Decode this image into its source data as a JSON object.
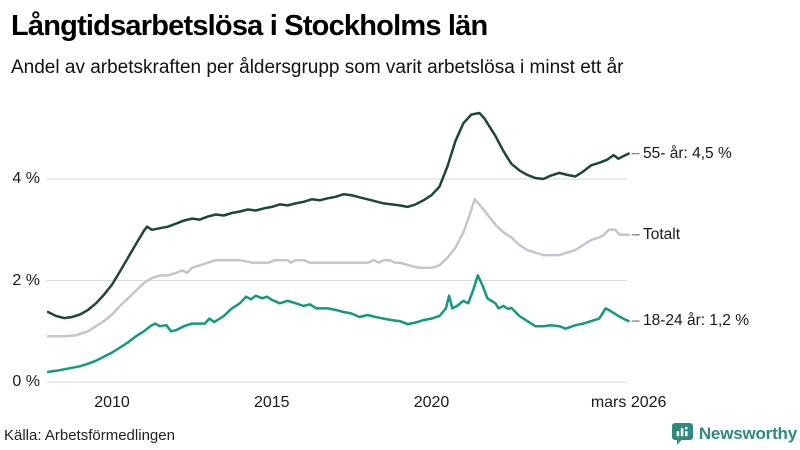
{
  "header": {
    "title": "Långtidsarbetslösa i Stockholms län",
    "subtitle": "Andel av arbetskraften per åldersgrupp som varit arbetslösa i minst ett år"
  },
  "footer": {
    "source": "Källa: Arbetsförmedlingen",
    "brand": "Newsworthy",
    "brand_color": "#2e8a7c",
    "brand_icon": "newsworthy-chart-bubble-icon"
  },
  "chart_data": {
    "type": "line",
    "title": "Långtidsarbetslösa i Stockholms län",
    "subtitle": "Andel av arbetskraften per åldersgrupp som varit arbetslösa i minst ett år",
    "grid": true,
    "grid_color": "#d9d9de",
    "legend_position": "right-end-labels",
    "x_axis": {
      "range": [
        2008,
        2026.25
      ],
      "ticks": [
        "2010",
        "2015",
        "2020",
        "mars 2026"
      ],
      "tick_positions": [
        2010,
        2015,
        2020,
        2026.17
      ]
    },
    "y_axis": {
      "unit": "%",
      "range": [
        0,
        5.6
      ],
      "ticks": [
        "4 %",
        "2 %",
        "0 %"
      ],
      "tick_values": [
        4,
        2,
        0
      ]
    },
    "series": [
      {
        "name": "55- år",
        "label": "55- år: 4,5 %",
        "end_value": "4,5 %",
        "color": "#1d463a",
        "points": [
          [
            2008,
            1.38
          ],
          [
            2008.25,
            1.3
          ],
          [
            2008.5,
            1.26
          ],
          [
            2008.75,
            1.28
          ],
          [
            2009,
            1.33
          ],
          [
            2009.25,
            1.42
          ],
          [
            2009.5,
            1.55
          ],
          [
            2009.75,
            1.72
          ],
          [
            2010,
            1.92
          ],
          [
            2010.25,
            2.18
          ],
          [
            2010.5,
            2.45
          ],
          [
            2010.75,
            2.72
          ],
          [
            2011,
            2.98
          ],
          [
            2011.1,
            3.06
          ],
          [
            2011.25,
            3.0
          ],
          [
            2011.5,
            3.03
          ],
          [
            2011.75,
            3.06
          ],
          [
            2012,
            3.12
          ],
          [
            2012.25,
            3.18
          ],
          [
            2012.5,
            3.22
          ],
          [
            2012.75,
            3.2
          ],
          [
            2013,
            3.26
          ],
          [
            2013.25,
            3.3
          ],
          [
            2013.5,
            3.28
          ],
          [
            2013.75,
            3.33
          ],
          [
            2014,
            3.36
          ],
          [
            2014.25,
            3.4
          ],
          [
            2014.5,
            3.38
          ],
          [
            2014.75,
            3.42
          ],
          [
            2015,
            3.45
          ],
          [
            2015.25,
            3.5
          ],
          [
            2015.5,
            3.48
          ],
          [
            2015.75,
            3.52
          ],
          [
            2016,
            3.55
          ],
          [
            2016.25,
            3.6
          ],
          [
            2016.5,
            3.58
          ],
          [
            2016.75,
            3.62
          ],
          [
            2017,
            3.65
          ],
          [
            2017.25,
            3.7
          ],
          [
            2017.5,
            3.68
          ],
          [
            2017.75,
            3.64
          ],
          [
            2018,
            3.6
          ],
          [
            2018.25,
            3.56
          ],
          [
            2018.5,
            3.52
          ],
          [
            2018.75,
            3.5
          ],
          [
            2019,
            3.48
          ],
          [
            2019.25,
            3.45
          ],
          [
            2019.5,
            3.5
          ],
          [
            2019.75,
            3.58
          ],
          [
            2020,
            3.68
          ],
          [
            2020.25,
            3.85
          ],
          [
            2020.5,
            4.25
          ],
          [
            2020.75,
            4.75
          ],
          [
            2021,
            5.1
          ],
          [
            2021.25,
            5.27
          ],
          [
            2021.5,
            5.3
          ],
          [
            2021.65,
            5.2
          ],
          [
            2021.75,
            5.1
          ],
          [
            2022,
            4.85
          ],
          [
            2022.25,
            4.55
          ],
          [
            2022.5,
            4.3
          ],
          [
            2022.75,
            4.17
          ],
          [
            2023,
            4.08
          ],
          [
            2023.25,
            4.02
          ],
          [
            2023.5,
            4.0
          ],
          [
            2023.75,
            4.07
          ],
          [
            2024,
            4.12
          ],
          [
            2024.25,
            4.08
          ],
          [
            2024.5,
            4.05
          ],
          [
            2024.75,
            4.15
          ],
          [
            2025,
            4.27
          ],
          [
            2025.25,
            4.32
          ],
          [
            2025.5,
            4.38
          ],
          [
            2025.7,
            4.47
          ],
          [
            2025.85,
            4.4
          ],
          [
            2026,
            4.45
          ],
          [
            2026.17,
            4.5
          ]
        ]
      },
      {
        "name": "Totalt",
        "label": "Totalt",
        "end_value": "",
        "color": "#c6c3d2",
        "points": [
          [
            2008,
            0.9
          ],
          [
            2008.5,
            0.9
          ],
          [
            2008.9,
            0.92
          ],
          [
            2009,
            0.95
          ],
          [
            2009.25,
            1.0
          ],
          [
            2009.5,
            1.1
          ],
          [
            2009.75,
            1.2
          ],
          [
            2010,
            1.33
          ],
          [
            2010.25,
            1.5
          ],
          [
            2010.5,
            1.65
          ],
          [
            2010.75,
            1.8
          ],
          [
            2011,
            1.95
          ],
          [
            2011.25,
            2.05
          ],
          [
            2011.5,
            2.1
          ],
          [
            2011.75,
            2.1
          ],
          [
            2012,
            2.15
          ],
          [
            2012.2,
            2.2
          ],
          [
            2012.35,
            2.15
          ],
          [
            2012.5,
            2.25
          ],
          [
            2012.75,
            2.3
          ],
          [
            2013,
            2.35
          ],
          [
            2013.25,
            2.4
          ],
          [
            2013.75,
            2.4
          ],
          [
            2014,
            2.4
          ],
          [
            2014.4,
            2.35
          ],
          [
            2014.9,
            2.35
          ],
          [
            2015.1,
            2.4
          ],
          [
            2015.5,
            2.4
          ],
          [
            2015.6,
            2.35
          ],
          [
            2015.75,
            2.4
          ],
          [
            2016,
            2.4
          ],
          [
            2016.2,
            2.35
          ],
          [
            2017,
            2.35
          ],
          [
            2018,
            2.35
          ],
          [
            2018.2,
            2.4
          ],
          [
            2018.35,
            2.35
          ],
          [
            2018.5,
            2.4
          ],
          [
            2018.7,
            2.4
          ],
          [
            2018.85,
            2.35
          ],
          [
            2019,
            2.35
          ],
          [
            2019.3,
            2.3
          ],
          [
            2019.6,
            2.25
          ],
          [
            2020,
            2.25
          ],
          [
            2020.25,
            2.3
          ],
          [
            2020.5,
            2.45
          ],
          [
            2020.75,
            2.65
          ],
          [
            2021,
            2.95
          ],
          [
            2021.2,
            3.3
          ],
          [
            2021.35,
            3.6
          ],
          [
            2021.5,
            3.5
          ],
          [
            2021.75,
            3.3
          ],
          [
            2022,
            3.1
          ],
          [
            2022.25,
            2.95
          ],
          [
            2022.5,
            2.85
          ],
          [
            2022.75,
            2.7
          ],
          [
            2023,
            2.6
          ],
          [
            2023.25,
            2.55
          ],
          [
            2023.5,
            2.5
          ],
          [
            2024,
            2.5
          ],
          [
            2024.25,
            2.55
          ],
          [
            2024.5,
            2.6
          ],
          [
            2024.75,
            2.7
          ],
          [
            2025,
            2.8
          ],
          [
            2025.25,
            2.85
          ],
          [
            2025.4,
            2.9
          ],
          [
            2025.55,
            3.0
          ],
          [
            2025.75,
            3.0
          ],
          [
            2025.9,
            2.9
          ],
          [
            2026.17,
            2.9
          ]
        ]
      },
      {
        "name": "18-24 år",
        "label": "18-24 år: 1,2 %",
        "end_value": "1,2 %",
        "color": "#13997e",
        "points": [
          [
            2008,
            0.2
          ],
          [
            2008.25,
            0.22
          ],
          [
            2008.5,
            0.25
          ],
          [
            2008.75,
            0.28
          ],
          [
            2009,
            0.31
          ],
          [
            2009.25,
            0.36
          ],
          [
            2009.5,
            0.42
          ],
          [
            2009.75,
            0.5
          ],
          [
            2010,
            0.58
          ],
          [
            2010.25,
            0.68
          ],
          [
            2010.5,
            0.78
          ],
          [
            2010.75,
            0.9
          ],
          [
            2011,
            1.0
          ],
          [
            2011.2,
            1.1
          ],
          [
            2011.35,
            1.15
          ],
          [
            2011.5,
            1.1
          ],
          [
            2011.7,
            1.12
          ],
          [
            2011.85,
            1.0
          ],
          [
            2012,
            1.02
          ],
          [
            2012.25,
            1.1
          ],
          [
            2012.5,
            1.15
          ],
          [
            2012.9,
            1.15
          ],
          [
            2013.05,
            1.25
          ],
          [
            2013.2,
            1.18
          ],
          [
            2013.5,
            1.3
          ],
          [
            2013.75,
            1.45
          ],
          [
            2014,
            1.55
          ],
          [
            2014.2,
            1.68
          ],
          [
            2014.35,
            1.63
          ],
          [
            2014.5,
            1.7
          ],
          [
            2014.7,
            1.65
          ],
          [
            2014.85,
            1.68
          ],
          [
            2015,
            1.62
          ],
          [
            2015.25,
            1.55
          ],
          [
            2015.5,
            1.6
          ],
          [
            2015.75,
            1.55
          ],
          [
            2016,
            1.5
          ],
          [
            2016.2,
            1.53
          ],
          [
            2016.4,
            1.45
          ],
          [
            2016.75,
            1.45
          ],
          [
            2017,
            1.42
          ],
          [
            2017.25,
            1.38
          ],
          [
            2017.5,
            1.35
          ],
          [
            2017.75,
            1.28
          ],
          [
            2018,
            1.32
          ],
          [
            2018.25,
            1.28
          ],
          [
            2018.5,
            1.25
          ],
          [
            2018.75,
            1.22
          ],
          [
            2019,
            1.2
          ],
          [
            2019.25,
            1.14
          ],
          [
            2019.5,
            1.17
          ],
          [
            2019.75,
            1.22
          ],
          [
            2020,
            1.25
          ],
          [
            2020.25,
            1.3
          ],
          [
            2020.45,
            1.45
          ],
          [
            2020.55,
            1.7
          ],
          [
            2020.65,
            1.45
          ],
          [
            2020.8,
            1.5
          ],
          [
            2021,
            1.6
          ],
          [
            2021.15,
            1.55
          ],
          [
            2021.3,
            1.8
          ],
          [
            2021.45,
            2.1
          ],
          [
            2021.6,
            1.9
          ],
          [
            2021.75,
            1.65
          ],
          [
            2022,
            1.55
          ],
          [
            2022.1,
            1.45
          ],
          [
            2022.25,
            1.5
          ],
          [
            2022.4,
            1.44
          ],
          [
            2022.5,
            1.46
          ],
          [
            2022.75,
            1.3
          ],
          [
            2023,
            1.2
          ],
          [
            2023.25,
            1.1
          ],
          [
            2023.5,
            1.1
          ],
          [
            2023.75,
            1.12
          ],
          [
            2024,
            1.1
          ],
          [
            2024.2,
            1.05
          ],
          [
            2024.5,
            1.12
          ],
          [
            2024.75,
            1.15
          ],
          [
            2025,
            1.2
          ],
          [
            2025.25,
            1.25
          ],
          [
            2025.45,
            1.45
          ],
          [
            2025.6,
            1.4
          ],
          [
            2025.8,
            1.32
          ],
          [
            2026,
            1.25
          ],
          [
            2026.17,
            1.2
          ]
        ]
      }
    ]
  }
}
